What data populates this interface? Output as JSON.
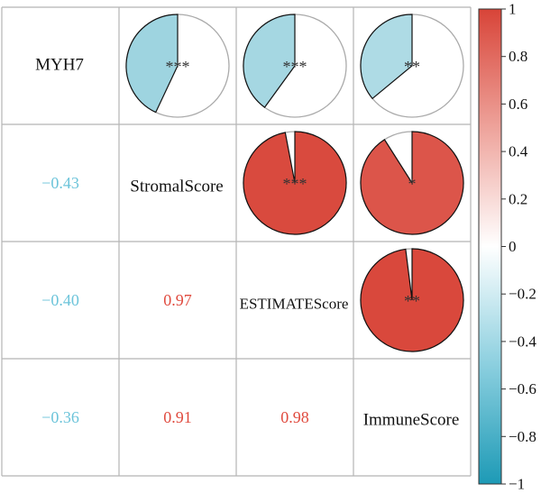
{
  "chart_data": {
    "type": "correlogram",
    "variables": [
      "MYH7",
      "StromalScore",
      "ESTIMATEScore",
      "ImmuneScore"
    ],
    "lower_triangle": "coefficients",
    "upper_triangle": "pie",
    "pairs": [
      {
        "row": 1,
        "col": 0,
        "value": -0.43,
        "label": "−0.43",
        "stars": "***"
      },
      {
        "row": 2,
        "col": 0,
        "value": -0.4,
        "label": "−0.40",
        "stars": "***"
      },
      {
        "row": 3,
        "col": 0,
        "value": -0.36,
        "label": "−0.36",
        "stars": "**"
      },
      {
        "row": 2,
        "col": 1,
        "value": 0.97,
        "label": "0.97",
        "stars": "***"
      },
      {
        "row": 3,
        "col": 1,
        "value": 0.91,
        "label": "0.91",
        "stars": "*"
      },
      {
        "row": 3,
        "col": 2,
        "value": 0.98,
        "label": "0.98",
        "stars": "**"
      }
    ],
    "colorbar": {
      "range": [
        -1,
        1
      ],
      "ticks": [
        "1",
        "0.8",
        "0.6",
        "0.4",
        "0.2",
        "0",
        "−0.2",
        "−0.4",
        "−0.6",
        "−0.8",
        "−1"
      ],
      "colors": {
        "negative": "#1f9db8",
        "zero": "#ffffff",
        "positive": "#e04b3f"
      }
    }
  },
  "colors": {
    "grid": "#b5b5b5",
    "negative_text": "#6cc4da",
    "positive_text": "#e04b3f"
  }
}
